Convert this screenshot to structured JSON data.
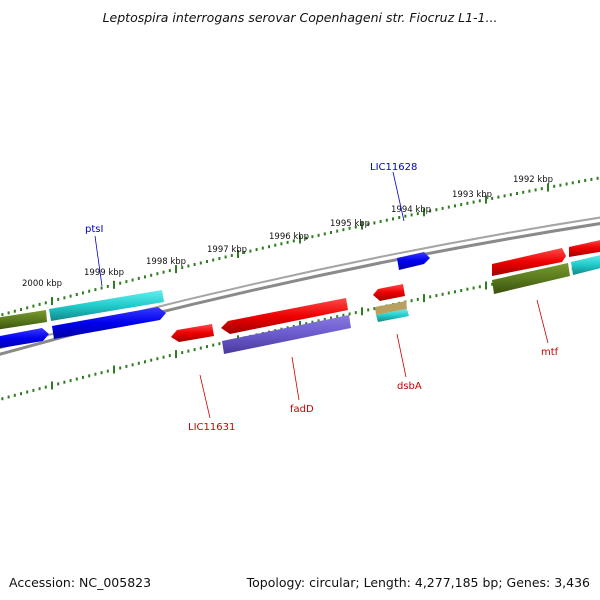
{
  "title": "Leptospira interrogans serovar Copenhageni str. Fiocruz L1-1...",
  "footer": {
    "accession": "Accession: NC_005823",
    "summary": "Topology: circular; Length: 4,277,185 bp; Genes: 3,436"
  },
  "ruler": {
    "labels": [
      "2000 kbp",
      "1999 kbp",
      "1998 kbp",
      "1997 kbp",
      "1996 kbp",
      "1995 kbp",
      "1994 kbp",
      "1993 kbp",
      "1992 kbp"
    ],
    "color": "#2e7d1e"
  },
  "colors": {
    "backbone": "#808080",
    "red": "#ee0000",
    "blue": "#0000ee",
    "cyan": "#22cccc",
    "olive": "#5a7a1e",
    "purple": "#6a5acd",
    "label_red": "#cc0000",
    "label_blue": "#0000cc"
  },
  "gene_labels": [
    {
      "name": "LIC11628",
      "color": "blue"
    },
    {
      "name": "ptsI",
      "color": "blue"
    },
    {
      "name": "LIC11631",
      "color": "red"
    },
    {
      "name": "fadD",
      "color": "red"
    },
    {
      "name": "dsbA",
      "color": "red"
    },
    {
      "name": "mtf",
      "color": "red"
    }
  ]
}
